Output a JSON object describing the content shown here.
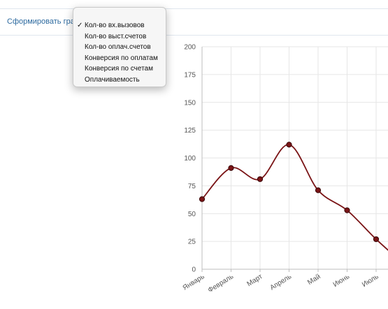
{
  "toolbar": {
    "build_chart_label": "Сформировать графи"
  },
  "metric_menu": {
    "selected_index": 0,
    "items": [
      "Кол-во вх.вызовов",
      "Кол-во выст.счетов",
      "Кол-во оплач.счетов",
      "Конверсия по оплатам",
      "Конверсия по счетам",
      "Оплачиваемость"
    ]
  },
  "colors": {
    "line": "#7a1416",
    "marker": "#7a1416",
    "grid": "#e6e6e6",
    "link": "#2d6a9f"
  },
  "chart_data": {
    "type": "line",
    "title": "",
    "xlabel": "",
    "ylabel": "",
    "ylim": [
      0,
      200
    ],
    "yticks": [
      0,
      25,
      50,
      75,
      100,
      125,
      150,
      175,
      200
    ],
    "categories": [
      "Январь",
      "Февраль",
      "Март",
      "Апрель",
      "Май",
      "Июнь",
      "Июль"
    ],
    "series": [
      {
        "values": [
          63,
          91,
          81,
          112,
          71,
          53,
          27
        ]
      }
    ],
    "grid": true
  }
}
